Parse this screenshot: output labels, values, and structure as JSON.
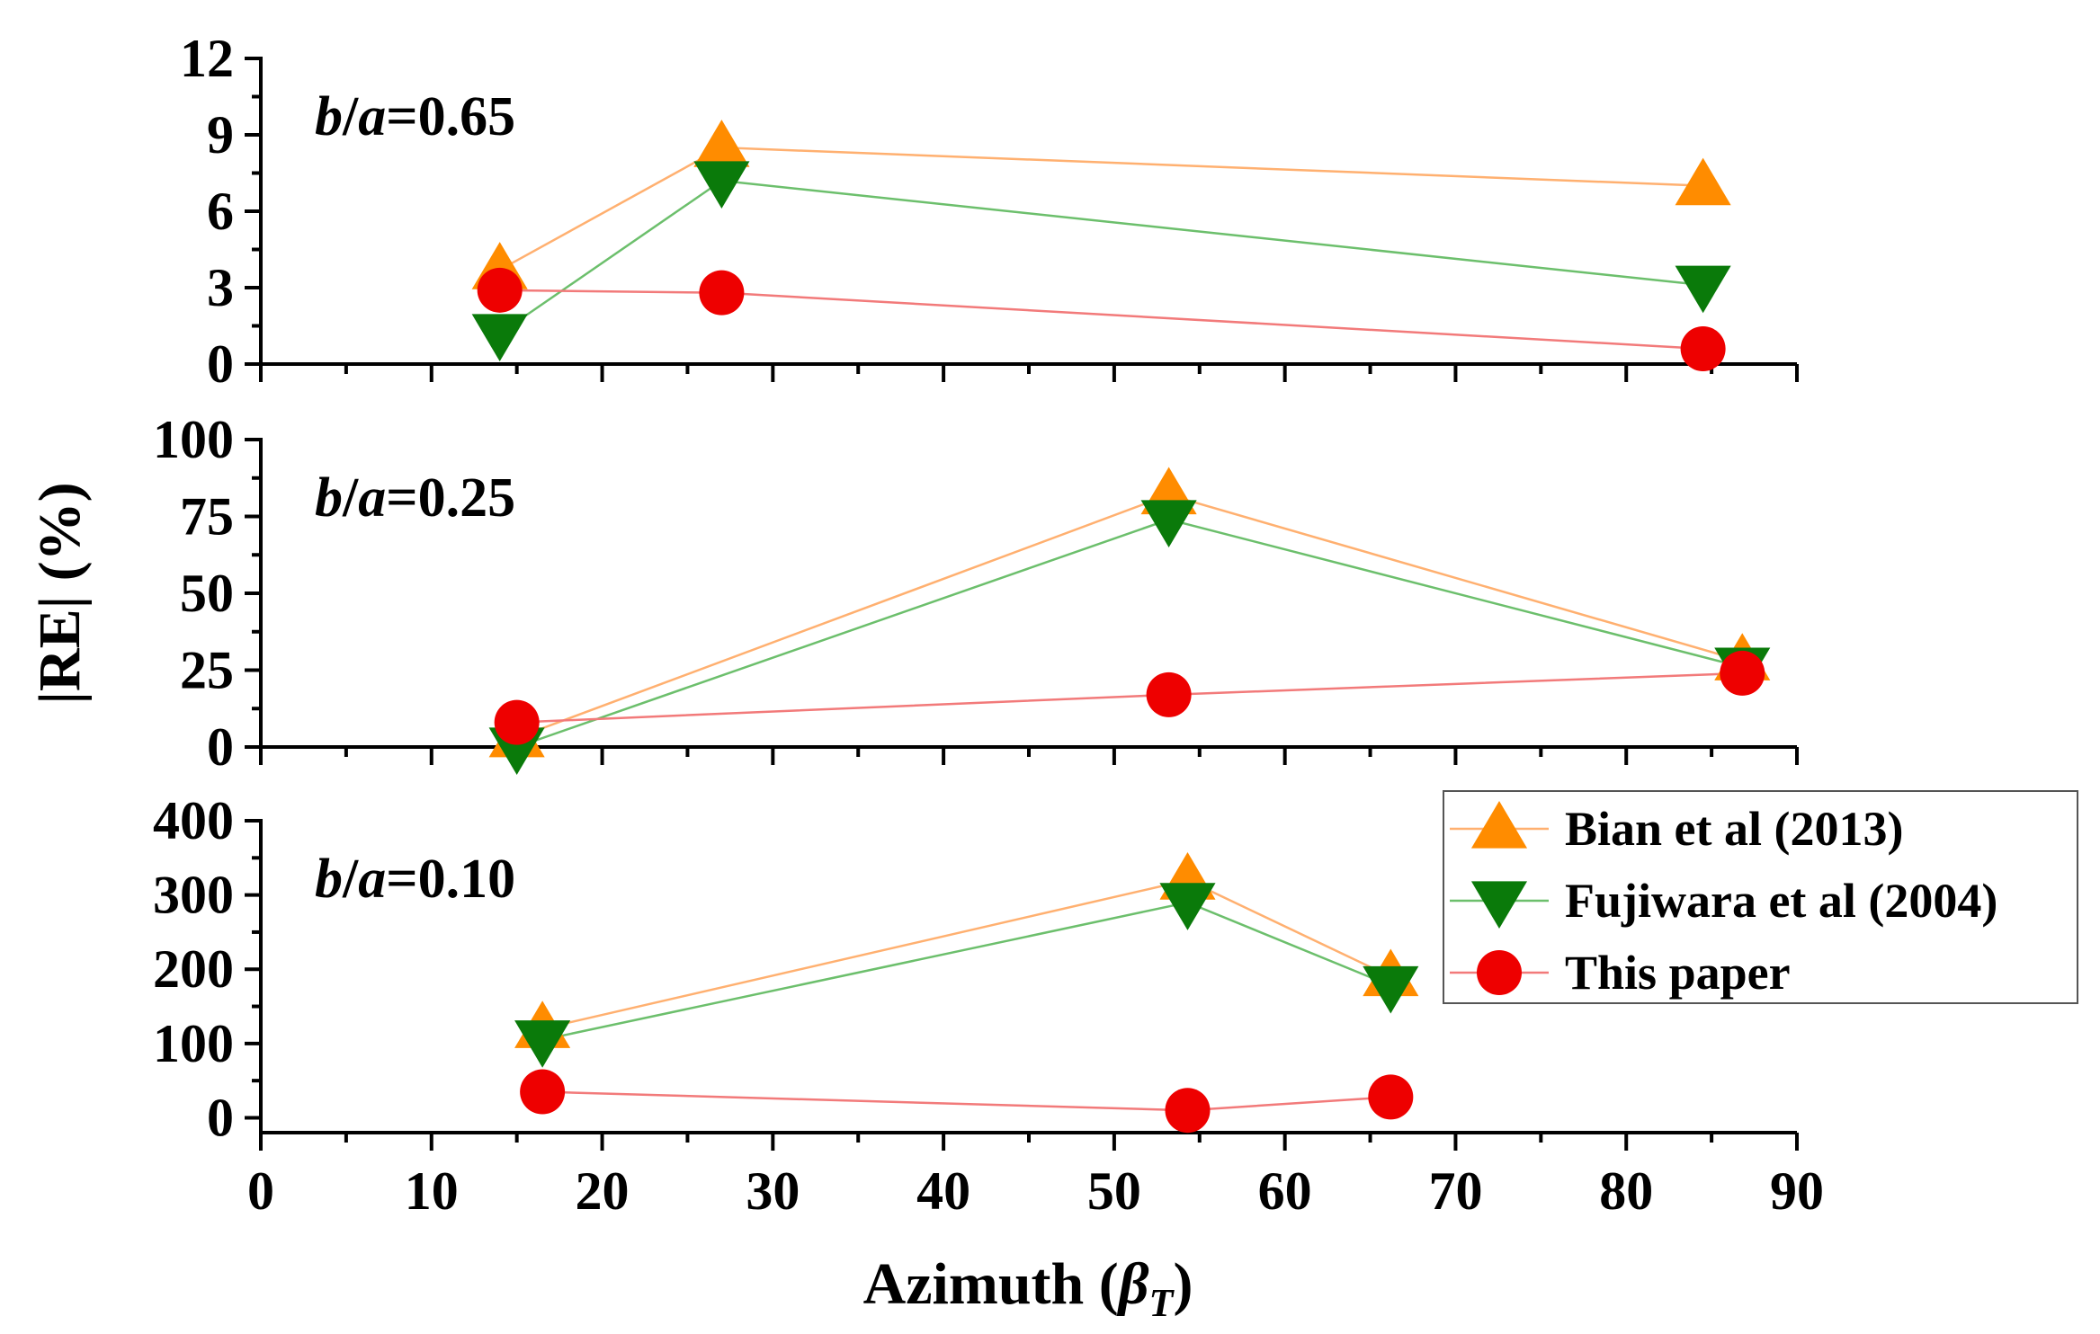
{
  "figure": {
    "ylabel": "|RE| (%)",
    "xlabel_main": "Azimuth (",
    "xlabel_symbol": "β",
    "xlabel_sub": "T",
    "xlabel_close": ")"
  },
  "chart_data": {
    "type": "line",
    "x_axis": {
      "range": [
        0,
        90
      ],
      "ticks": [
        0,
        10,
        20,
        30,
        40,
        50,
        60,
        70,
        80,
        90
      ],
      "tick_labels": [
        "0",
        "10",
        "20",
        "30",
        "40",
        "50",
        "60",
        "70",
        "80",
        "90"
      ]
    },
    "panels": [
      {
        "label_italic": "b",
        "label_slash": "/",
        "label_italic2": "a",
        "label_value": "=0.65",
        "ylim": [
          0,
          12
        ],
        "yticks": [
          0,
          3,
          6,
          9,
          12
        ],
        "ytick_labels": [
          "0",
          "3",
          "6",
          "9",
          "12"
        ],
        "series": [
          {
            "key": "bian",
            "x": [
              14,
              27,
              84.5
            ],
            "y": [
              3.7,
              8.5,
              7.0
            ]
          },
          {
            "key": "fujiwara",
            "x": [
              14,
              27,
              84.5
            ],
            "y": [
              1.2,
              7.2,
              3.1
            ]
          },
          {
            "key": "this",
            "x": [
              14,
              27,
              84.5
            ],
            "y": [
              2.9,
              2.8,
              0.6
            ]
          }
        ]
      },
      {
        "label_italic": "b",
        "label_slash": "/",
        "label_italic2": "a",
        "label_value": "=0.25",
        "ylim": [
          0,
          100
        ],
        "yticks": [
          0,
          25,
          50,
          75,
          100
        ],
        "ytick_labels": [
          "0",
          "25",
          "50",
          "75",
          "100"
        ],
        "series": [
          {
            "key": "bian",
            "x": [
              15,
              53.2,
              86.8
            ],
            "y": [
              3,
              82,
              28
            ]
          },
          {
            "key": "fujiwara",
            "x": [
              15,
              53.2,
              86.8
            ],
            "y": [
              0,
              74,
              26
            ]
          },
          {
            "key": "this",
            "x": [
              15,
              53.2,
              86.8
            ],
            "y": [
              8,
              17,
              24
            ]
          }
        ]
      },
      {
        "label_italic": "b",
        "label_slash": "/",
        "label_italic2": "a",
        "label_value": "=0.10",
        "ylim": [
          -20,
          400
        ],
        "yticks": [
          0,
          100,
          200,
          300,
          400
        ],
        "ytick_labels": [
          "0",
          "100",
          "200",
          "300",
          "400"
        ],
        "series": [
          {
            "key": "bian",
            "x": [
              16.5,
              54.3,
              66.2
            ],
            "y": [
              120,
              320,
              190
            ]
          },
          {
            "key": "fujiwara",
            "x": [
              16.5,
              54.3,
              66.2
            ],
            "y": [
              105,
              290,
              178
            ]
          },
          {
            "key": "this",
            "x": [
              16.5,
              54.3,
              66.2
            ],
            "y": [
              35,
              10,
              28
            ]
          }
        ]
      }
    ],
    "legend": {
      "placement": "right of bottom panel",
      "entries": [
        {
          "key": "bian",
          "label": "Bian et al (2013)",
          "marker": "triangle-up"
        },
        {
          "key": "fujiwara",
          "label": "Fujiwara et al (2004)",
          "marker": "triangle-down"
        },
        {
          "key": "this",
          "label": "This paper",
          "marker": "circle"
        }
      ]
    },
    "colors": {
      "bian_fill": "#ff8c00",
      "bian_line": "#ffb070",
      "fujiwara_fill": "#0a7a0a",
      "fujiwara_line": "#6cbf6c",
      "this_fill": "#ee0000",
      "this_line": "#f27a7a"
    }
  }
}
